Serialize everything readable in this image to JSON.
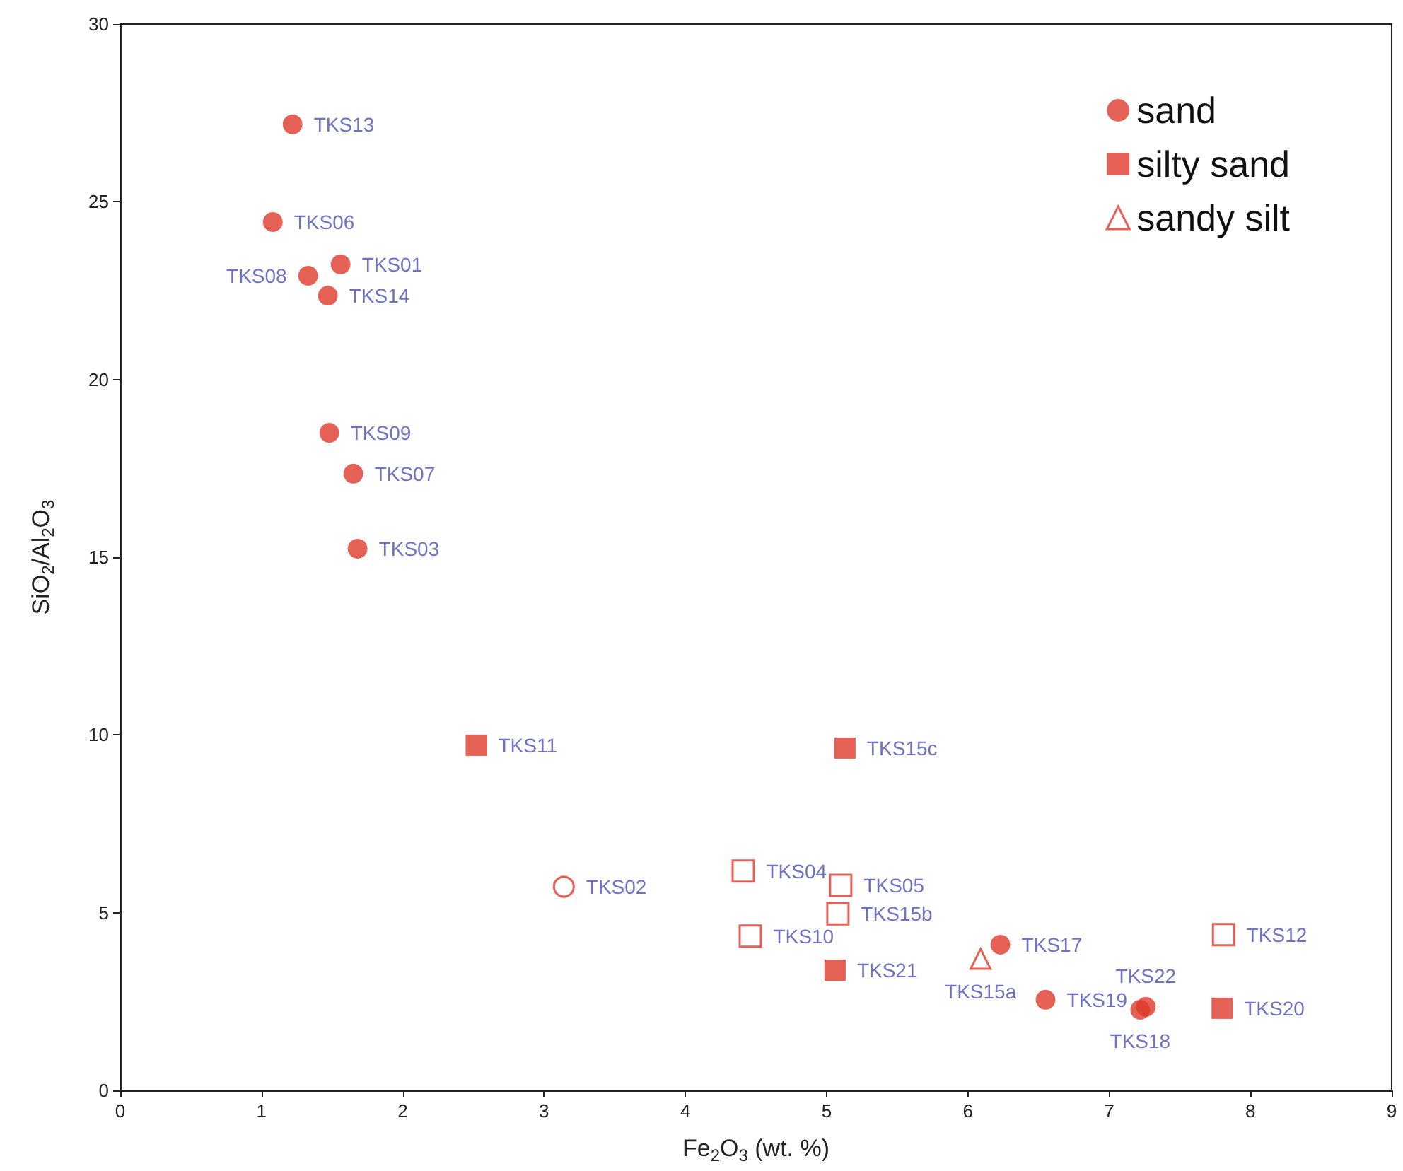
{
  "chart_data": {
    "type": "scatter",
    "xlabel": "Fe$_{2}$O$_{3}$ (wt. %)",
    "ylabel": "SiO$_{2}$/Al$_{2}$O$_{3}$",
    "xlim": [
      0,
      9
    ],
    "xticks": [
      0,
      1,
      2,
      3,
      4,
      5,
      6,
      7,
      8,
      9
    ],
    "ylim": [
      0,
      30
    ],
    "yticks": [
      0,
      5,
      10,
      15,
      20,
      25,
      30
    ],
    "grid": false,
    "legend": "top right",
    "series": [
      {
        "name": "sand",
        "color": "#e03a2a",
        "marker": "circle",
        "x": [
          1.22,
          1.08,
          1.56,
          1.33,
          1.47,
          1.48,
          1.65,
          1.68,
          3.14,
          6.23,
          6.55,
          7.22,
          7.26
        ],
        "values": [
          27.18,
          24.43,
          23.24,
          22.92,
          22.36,
          18.5,
          17.35,
          15.24,
          5.73,
          4.1,
          2.55,
          2.27,
          2.35
        ],
        "value_labels": [
          "TKS13",
          "TKS06",
          "TKS01",
          "TKS08",
          "TKS14",
          "TKS09",
          "TKS07",
          "TKS03",
          "TKS02",
          "TKS17",
          "TKS19",
          "TKS18",
          "TKS22"
        ],
        "colors": [
          "#e03a2a",
          "#e03a2a",
          "#e03a2a",
          "#e03a2a",
          "#e03a2a",
          "#e03a2a",
          "#e03a2a",
          "#e03a2a",
          "#ffffff",
          "#e03a2a",
          "#e03a2a",
          "#e03a2a",
          "#e03a2a"
        ]
      },
      {
        "name": "silty sand",
        "color": "#e03a2a",
        "marker": "square",
        "x": [
          2.52,
          5.13,
          5.06,
          7.8,
          4.41,
          5.1,
          5.08,
          4.46,
          7.81
        ],
        "values": [
          9.71,
          9.63,
          3.38,
          2.31,
          6.17,
          5.77,
          4.97,
          4.34,
          4.38
        ],
        "value_labels": [
          "TKS11",
          "TKS15c",
          "TKS21",
          "TKS20",
          "TKS04",
          "TKS05",
          "TKS15b",
          "TKS10",
          "TKS12"
        ],
        "colors": [
          "#e03a2a",
          "#e03a2a",
          "#e03a2a",
          "#e03a2a",
          "#ffffff",
          "#ffffff",
          "#ffffff",
          "#ffffff",
          "#ffffff"
        ]
      },
      {
        "name": "sandy silt",
        "color": "#e03a2a",
        "marker": "triangle",
        "x": [
          6.09
        ],
        "values": [
          3.7
        ],
        "value_labels": [
          "TKS15a"
        ],
        "colors": [
          "#ffffff"
        ]
      }
    ]
  }
}
